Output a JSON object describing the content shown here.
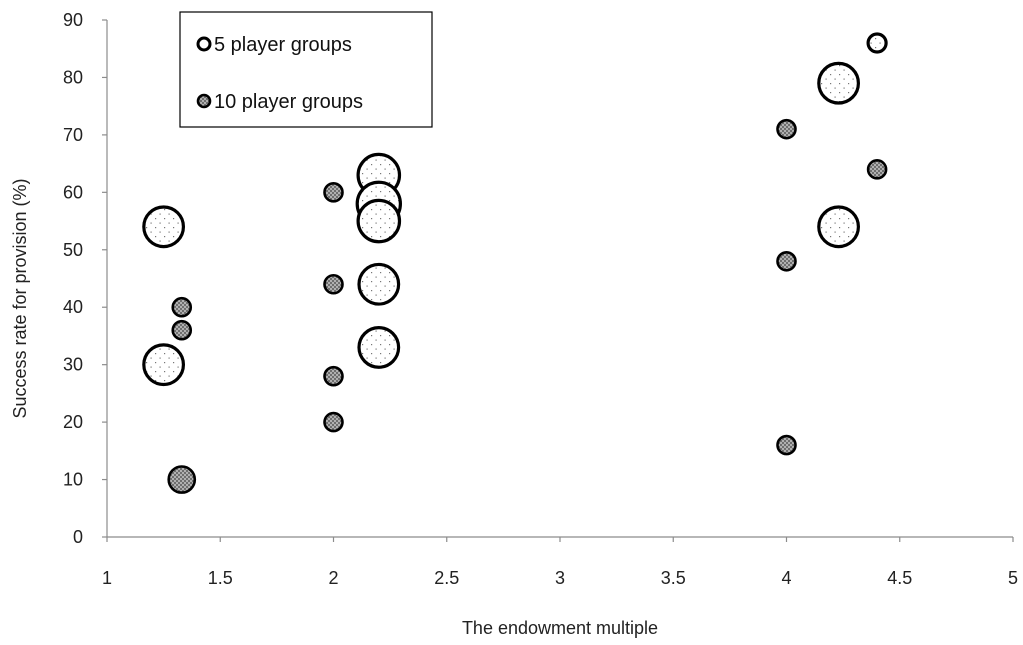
{
  "chart_data": {
    "type": "scatter",
    "xlabel": "The endowment multiple",
    "ylabel": "Success rate for provision (%)",
    "xlim": [
      1,
      5
    ],
    "ylim": [
      0,
      90
    ],
    "x_ticks": [
      "1",
      "1.5",
      "2",
      "2.5",
      "3",
      "3.5",
      "4",
      "4.5",
      "5"
    ],
    "y_ticks": [
      "0",
      "10",
      "20",
      "30",
      "40",
      "50",
      "60",
      "70",
      "80",
      "90"
    ],
    "grid": false,
    "legend_position": "top-left",
    "series": [
      {
        "name": "5 player groups",
        "marker": "open-dotted",
        "color": "#000000",
        "points": [
          {
            "x": 1.25,
            "y": 54,
            "size": 2.2
          },
          {
            "x": 1.25,
            "y": 30,
            "size": 2.2
          },
          {
            "x": 2.2,
            "y": 63,
            "size": 2.3
          },
          {
            "x": 2.2,
            "y": 58,
            "size": 2.4
          },
          {
            "x": 2.2,
            "y": 55,
            "size": 2.3
          },
          {
            "x": 2.2,
            "y": 44,
            "size": 2.2
          },
          {
            "x": 2.2,
            "y": 33,
            "size": 2.2
          },
          {
            "x": 4.23,
            "y": 79,
            "size": 2.2
          },
          {
            "x": 4.23,
            "y": 54,
            "size": 2.2
          },
          {
            "x": 4.4,
            "y": 86,
            "size": 1
          }
        ]
      },
      {
        "name": "10 player groups",
        "marker": "filled-hatched",
        "color": "#9a9a9a",
        "points": [
          {
            "x": 1.33,
            "y": 40,
            "size": 1
          },
          {
            "x": 1.33,
            "y": 36,
            "size": 1
          },
          {
            "x": 1.33,
            "y": 10,
            "size": 1.45
          },
          {
            "x": 2.0,
            "y": 60,
            "size": 1
          },
          {
            "x": 2.0,
            "y": 44,
            "size": 1
          },
          {
            "x": 2.0,
            "y": 28,
            "size": 1
          },
          {
            "x": 2.0,
            "y": 20,
            "size": 1
          },
          {
            "x": 4.0,
            "y": 71,
            "size": 1
          },
          {
            "x": 4.0,
            "y": 48,
            "size": 1
          },
          {
            "x": 4.0,
            "y": 16,
            "size": 1
          },
          {
            "x": 4.4,
            "y": 64,
            "size": 1
          }
        ]
      }
    ]
  }
}
